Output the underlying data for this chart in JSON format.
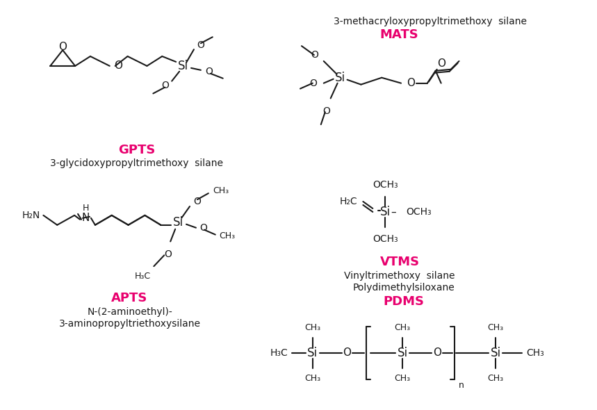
{
  "bg": "#ffffff",
  "pink": "#e8006e",
  "black": "#1a1a1a",
  "figsize": [
    8.59,
    5.9
  ],
  "dpi": 100,
  "compounds": {
    "GPTS": {
      "abbr": "GPTS",
      "name": "3-glycidoxypropyltrimethoxy  silane"
    },
    "MATS": {
      "abbr": "MATS",
      "name": "3-methacryloxypropyltrimethoxy  silane"
    },
    "APTS": {
      "abbr": "APTS",
      "name1": "N-(2-aminoethyl)-",
      "name2": "3-aminopropyltriethoxysilane"
    },
    "VTMS": {
      "abbr": "VTMS",
      "name": "Vinyltrimethoxy  silane"
    },
    "PDMS": {
      "abbr": "PDMS",
      "name": "Polydimethylsiloxane"
    }
  }
}
